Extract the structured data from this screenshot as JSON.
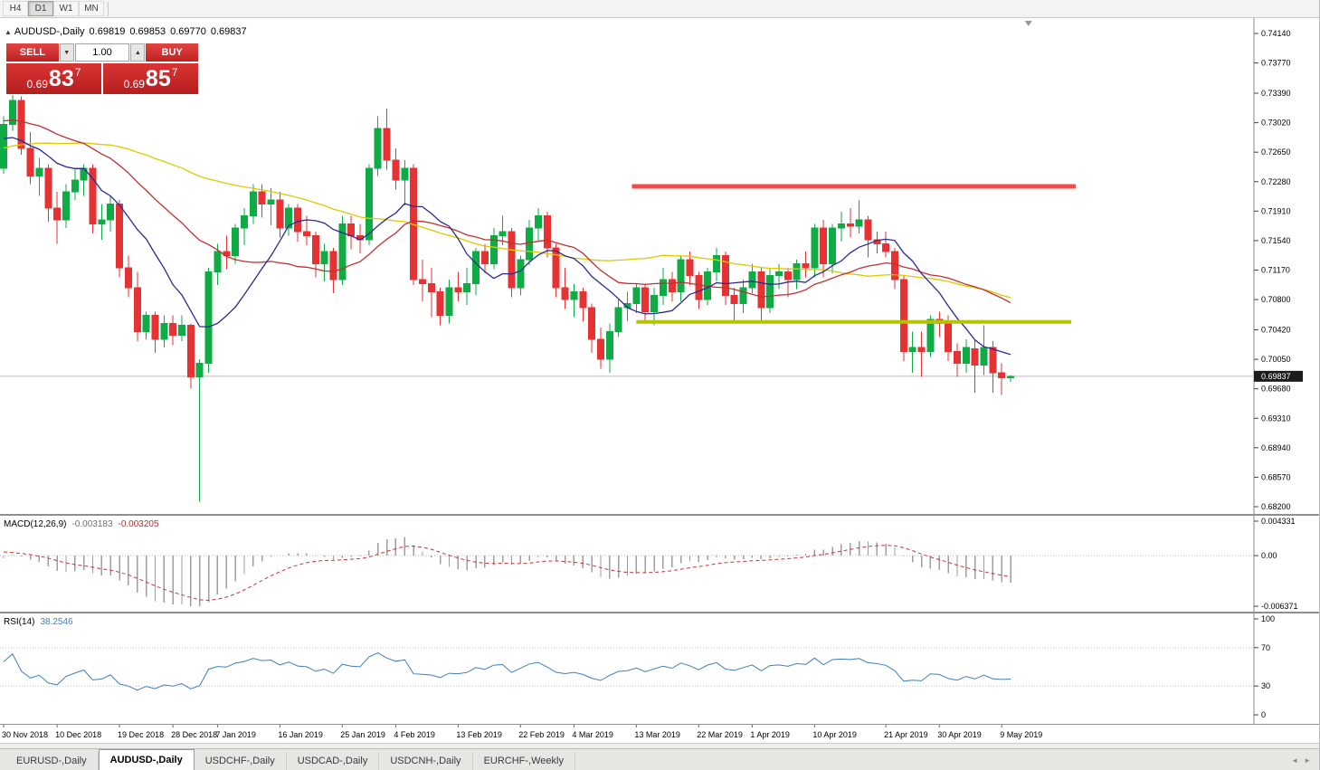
{
  "toolbar": {
    "timeframes": [
      "H4",
      "D1",
      "W1",
      "MN"
    ],
    "active": "D1"
  },
  "chart": {
    "collapse_icon": "▲",
    "symbol": "AUDUSD-,Daily",
    "quote": {
      "open": "0.69819",
      "high": "0.69853",
      "low": "0.69770",
      "close": "0.69837"
    }
  },
  "trade": {
    "sell_label": "SELL",
    "buy_label": "BUY",
    "volume": "1.00",
    "spin_down_icon": "▼",
    "spin_up_icon": "▲",
    "sell_price": {
      "prefix": "0.69",
      "big": "83",
      "sup": "7"
    },
    "buy_price": {
      "prefix": "0.69",
      "big": "85",
      "sup": "7"
    }
  },
  "macd": {
    "name": "MACD(12,26,9)",
    "value": "-0.003183",
    "signal": "-0.003205",
    "axis_top": "0.004331",
    "axis_mid": "0.00",
    "axis_bottom": "-0.006371",
    "scale_max": 0.004331,
    "scale_min": -0.006371
  },
  "rsi": {
    "name": "RSI(14)",
    "value": "38.2546",
    "axis": [
      "100",
      "70",
      "30",
      "0"
    ]
  },
  "tabs": {
    "items": [
      {
        "label": "EURUSD-,Daily"
      },
      {
        "label": "AUDUSD-,Daily"
      },
      {
        "label": "USDCHF-,Daily"
      },
      {
        "label": "USDCAD-,Daily"
      },
      {
        "label": "USDCNH-,Daily"
      },
      {
        "label": "EURCHF-,Weekly"
      }
    ],
    "active": "AUDUSD-,Daily",
    "scroll_left_icon": "◄",
    "scroll_right_icon": "►"
  },
  "chart_data": {
    "type": "candlestick",
    "symbol": "AUDUSD",
    "timeframe": "Daily",
    "price_axis": {
      "min": 0.682,
      "max": 0.7414,
      "ticks": [
        "0.74140",
        "0.73770",
        "0.73390",
        "0.73020",
        "0.72650",
        "0.72280",
        "0.71910",
        "0.71540",
        "0.71170",
        "0.70800",
        "0.70420",
        "0.70050",
        "0.69680",
        "0.69310",
        "0.68940",
        "0.68570",
        "0.68200"
      ]
    },
    "current_price": 0.69837,
    "current_price_label": "0.69837",
    "x_labels": [
      {
        "label": "30 Nov 2018",
        "index": 0
      },
      {
        "label": "10 Dec 2018",
        "index": 6
      },
      {
        "label": "19 Dec 2018",
        "index": 13
      },
      {
        "label": "28 Dec 2018",
        "index": 19
      },
      {
        "label": "7 Jan 2019",
        "index": 24
      },
      {
        "label": "16 Jan 2019",
        "index": 31
      },
      {
        "label": "25 Jan 2019",
        "index": 38
      },
      {
        "label": "4 Feb 2019",
        "index": 44
      },
      {
        "label": "13 Feb 2019",
        "index": 51
      },
      {
        "label": "22 Feb 2019",
        "index": 58
      },
      {
        "label": "4 Mar 2019",
        "index": 64
      },
      {
        "label": "13 Mar 2019",
        "index": 71
      },
      {
        "label": "22 Mar 2019",
        "index": 78
      },
      {
        "label": "1 Apr 2019",
        "index": 84
      },
      {
        "label": "10 Apr 2019",
        "index": 91
      },
      {
        "label": "21 Apr 2019",
        "index": 99
      },
      {
        "label": "30 Apr 2019",
        "index": 105
      },
      {
        "label": "9 May 2019",
        "index": 112
      }
    ],
    "candles": [
      [
        0.7245,
        0.731,
        0.7238,
        0.73
      ],
      [
        0.73,
        0.7337,
        0.7292,
        0.733
      ],
      [
        0.733,
        0.7335,
        0.7262,
        0.727
      ],
      [
        0.727,
        0.729,
        0.7225,
        0.7235
      ],
      [
        0.7235,
        0.7258,
        0.721,
        0.7245
      ],
      [
        0.7245,
        0.725,
        0.7178,
        0.7195
      ],
      [
        0.7195,
        0.7215,
        0.715,
        0.718
      ],
      [
        0.718,
        0.7225,
        0.717,
        0.7215
      ],
      [
        0.7215,
        0.7245,
        0.7205,
        0.723
      ],
      [
        0.723,
        0.725,
        0.721,
        0.7245
      ],
      [
        0.7245,
        0.725,
        0.7163,
        0.7175
      ],
      [
        0.7175,
        0.72,
        0.7155,
        0.718
      ],
      [
        0.718,
        0.721,
        0.7165,
        0.72
      ],
      [
        0.72,
        0.7205,
        0.7108,
        0.712
      ],
      [
        0.712,
        0.7135,
        0.7083,
        0.7095
      ],
      [
        0.7095,
        0.7115,
        0.7028,
        0.704
      ],
      [
        0.704,
        0.7065,
        0.703,
        0.706
      ],
      [
        0.706,
        0.7065,
        0.7013,
        0.703
      ],
      [
        0.703,
        0.706,
        0.702,
        0.705
      ],
      [
        0.705,
        0.706,
        0.7023,
        0.7035
      ],
      [
        0.7035,
        0.706,
        0.7028,
        0.7048
      ],
      [
        0.7048,
        0.705,
        0.6968,
        0.6983
      ],
      [
        0.6983,
        0.7005,
        0.6826,
        0.7
      ],
      [
        0.7,
        0.712,
        0.6988,
        0.7115
      ],
      [
        0.7115,
        0.715,
        0.7098,
        0.714
      ],
      [
        0.714,
        0.716,
        0.7118,
        0.7135
      ],
      [
        0.7135,
        0.7175,
        0.7125,
        0.717
      ],
      [
        0.717,
        0.7195,
        0.7148,
        0.7185
      ],
      [
        0.7185,
        0.7225,
        0.7175,
        0.7215
      ],
      [
        0.7215,
        0.7225,
        0.7183,
        0.72
      ],
      [
        0.72,
        0.722,
        0.7173,
        0.7205
      ],
      [
        0.7205,
        0.7215,
        0.7158,
        0.717
      ],
      [
        0.717,
        0.72,
        0.716,
        0.7195
      ],
      [
        0.7195,
        0.72,
        0.7153,
        0.7165
      ],
      [
        0.7165,
        0.7185,
        0.7148,
        0.716
      ],
      [
        0.716,
        0.7165,
        0.7108,
        0.7125
      ],
      [
        0.7125,
        0.715,
        0.7103,
        0.714
      ],
      [
        0.714,
        0.7145,
        0.7088,
        0.7105
      ],
      [
        0.7105,
        0.7185,
        0.7098,
        0.7175
      ],
      [
        0.7175,
        0.7185,
        0.7143,
        0.716
      ],
      [
        0.716,
        0.7175,
        0.7138,
        0.7155
      ],
      [
        0.7155,
        0.725,
        0.7148,
        0.7245
      ],
      [
        0.7245,
        0.731,
        0.7235,
        0.7295
      ],
      [
        0.7295,
        0.732,
        0.7243,
        0.7255
      ],
      [
        0.7255,
        0.727,
        0.7218,
        0.723
      ],
      [
        0.723,
        0.7255,
        0.7198,
        0.7245
      ],
      [
        0.7245,
        0.725,
        0.7098,
        0.7105
      ],
      [
        0.7105,
        0.713,
        0.7078,
        0.71
      ],
      [
        0.71,
        0.712,
        0.7058,
        0.709
      ],
      [
        0.709,
        0.7095,
        0.7048,
        0.706
      ],
      [
        0.706,
        0.7105,
        0.705,
        0.7095
      ],
      [
        0.7095,
        0.7115,
        0.7078,
        0.709
      ],
      [
        0.709,
        0.712,
        0.7073,
        0.71
      ],
      [
        0.71,
        0.7145,
        0.7085,
        0.714
      ],
      [
        0.714,
        0.715,
        0.7113,
        0.7125
      ],
      [
        0.7125,
        0.717,
        0.7118,
        0.716
      ],
      [
        0.716,
        0.7185,
        0.7148,
        0.7165
      ],
      [
        0.7165,
        0.717,
        0.7083,
        0.7095
      ],
      [
        0.7095,
        0.7135,
        0.7085,
        0.713
      ],
      [
        0.713,
        0.718,
        0.7123,
        0.717
      ],
      [
        0.717,
        0.7195,
        0.7153,
        0.7185
      ],
      [
        0.7185,
        0.719,
        0.7133,
        0.7145
      ],
      [
        0.7145,
        0.715,
        0.7083,
        0.7095
      ],
      [
        0.7095,
        0.712,
        0.7068,
        0.708
      ],
      [
        0.708,
        0.71,
        0.7058,
        0.709
      ],
      [
        0.709,
        0.7095,
        0.7053,
        0.707
      ],
      [
        0.707,
        0.7075,
        0.7013,
        0.703
      ],
      [
        0.703,
        0.7045,
        0.6993,
        0.7005
      ],
      [
        0.7005,
        0.705,
        0.6988,
        0.704
      ],
      [
        0.704,
        0.708,
        0.7033,
        0.707
      ],
      [
        0.707,
        0.709,
        0.7053,
        0.7075
      ],
      [
        0.7075,
        0.71,
        0.7063,
        0.7095
      ],
      [
        0.7095,
        0.71,
        0.7053,
        0.7065
      ],
      [
        0.7065,
        0.7095,
        0.7048,
        0.7085
      ],
      [
        0.7085,
        0.712,
        0.7073,
        0.7105
      ],
      [
        0.7105,
        0.7115,
        0.7078,
        0.709
      ],
      [
        0.709,
        0.7135,
        0.7078,
        0.713
      ],
      [
        0.713,
        0.714,
        0.7098,
        0.711
      ],
      [
        0.711,
        0.7115,
        0.7068,
        0.708
      ],
      [
        0.708,
        0.712,
        0.7073,
        0.7115
      ],
      [
        0.7115,
        0.7145,
        0.7103,
        0.7135
      ],
      [
        0.7135,
        0.714,
        0.7073,
        0.7085
      ],
      [
        0.7085,
        0.7095,
        0.7053,
        0.7075
      ],
      [
        0.7075,
        0.7105,
        0.7063,
        0.7095
      ],
      [
        0.7095,
        0.7125,
        0.7088,
        0.7115
      ],
      [
        0.7115,
        0.712,
        0.7053,
        0.707
      ],
      [
        0.707,
        0.712,
        0.7063,
        0.711
      ],
      [
        0.711,
        0.7125,
        0.7093,
        0.7115
      ],
      [
        0.7115,
        0.712,
        0.7083,
        0.7105
      ],
      [
        0.7105,
        0.713,
        0.7093,
        0.7125
      ],
      [
        0.7125,
        0.714,
        0.7108,
        0.712
      ],
      [
        0.712,
        0.7175,
        0.7108,
        0.717
      ],
      [
        0.717,
        0.718,
        0.7108,
        0.7125
      ],
      [
        0.7125,
        0.7175,
        0.7113,
        0.717
      ],
      [
        0.717,
        0.719,
        0.7153,
        0.7175
      ],
      [
        0.7175,
        0.7195,
        0.7158,
        0.7172
      ],
      [
        0.7172,
        0.7205,
        0.7163,
        0.718
      ],
      [
        0.718,
        0.7185,
        0.7133,
        0.7155
      ],
      [
        0.7155,
        0.7165,
        0.7138,
        0.715
      ],
      [
        0.715,
        0.7165,
        0.7133,
        0.714
      ],
      [
        0.714,
        0.7145,
        0.7093,
        0.7105
      ],
      [
        0.7105,
        0.711,
        0.7003,
        0.7015
      ],
      [
        0.7015,
        0.704,
        0.6988,
        0.702
      ],
      [
        0.702,
        0.704,
        0.6983,
        0.7015
      ],
      [
        0.7015,
        0.706,
        0.7008,
        0.7055
      ],
      [
        0.7055,
        0.7065,
        0.7033,
        0.705
      ],
      [
        0.705,
        0.706,
        0.7003,
        0.7015
      ],
      [
        0.7015,
        0.7025,
        0.6983,
        0.7
      ],
      [
        0.7,
        0.703,
        0.6988,
        0.702
      ],
      [
        0.7018,
        0.703,
        0.6963,
        0.6998
      ],
      [
        0.6998,
        0.7048,
        0.6985,
        0.702
      ],
      [
        0.702,
        0.7028,
        0.6963,
        0.6988
      ],
      [
        0.6988,
        0.7,
        0.696,
        0.6982
      ],
      [
        0.69819,
        0.69853,
        0.6977,
        0.69837
      ]
    ],
    "moving_averages": [
      {
        "name": "sma-slow",
        "period": 52,
        "color": "#ddca00"
      },
      {
        "name": "sma-mid",
        "period": 24,
        "color": "#c03030"
      },
      {
        "name": "sma-fast",
        "period": 10,
        "color": "#2a2a94"
      }
    ],
    "lines": [
      {
        "name": "resistance-line",
        "price": 0.7222,
        "from_index": 70.5,
        "to_index": 120.3,
        "color": "#f24c4c",
        "width": 5
      },
      {
        "name": "support-line",
        "price": 0.7052,
        "from_index": 71,
        "to_index": 119.8,
        "color": "#b4c400",
        "width": 4
      }
    ],
    "style": {
      "up": "#0fab44",
      "down": "#e63232",
      "macd_hist": "#9e9e9e",
      "macd_signal": "#cc3333",
      "rsi_line": "#3f7fbf",
      "current_line": "#bcbcbc"
    }
  }
}
